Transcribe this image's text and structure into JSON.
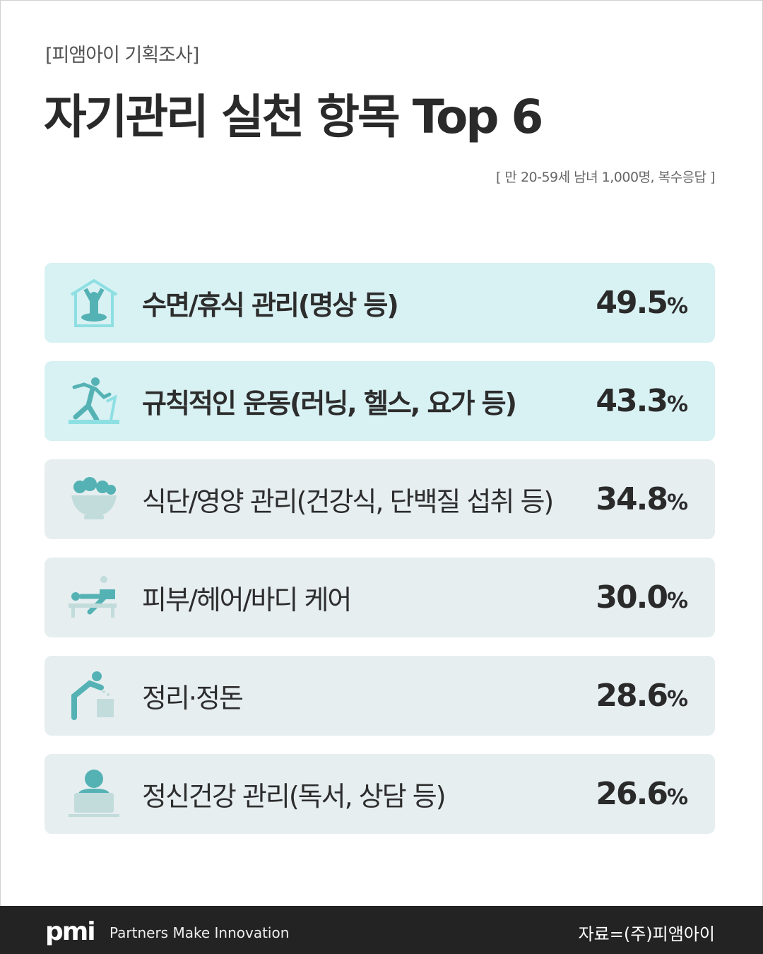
{
  "header": {
    "kicker": "[피앰아이 기획조사]",
    "title": "자기관리 실천 항목 Top 6",
    "note": "[ 만 20-59세 남녀 1,000명, 복수응답 ]"
  },
  "colors": {
    "highlight_bg": "#d8f1f3",
    "normal_bg": "#e6eef0",
    "icon_teal": "#55b2b4",
    "icon_light": "#8ddfe2",
    "footer_bg": "#232323"
  },
  "chart_data": {
    "type": "bar",
    "title": "자기관리 실천 항목 Top 6",
    "categories": [
      "수면/휴식 관리(명상 등)",
      "규칙적인 운동(러닝, 헬스, 요가 등)",
      "식단/영양 관리(건강식, 단백질 섭취 등)",
      "피부/헤어/바디 케어",
      "정리·정돈",
      "정신건강 관리(독서, 상담 등)"
    ],
    "values": [
      49.5,
      43.3,
      34.8,
      30.0,
      28.6,
      26.6
    ],
    "unit": "%",
    "icons": [
      "meditation-house-icon",
      "treadmill-runner-icon",
      "salad-bowl-icon",
      "spa-massage-icon",
      "tidying-person-icon",
      "reading-person-icon"
    ]
  },
  "rows": [
    {
      "label": "수면/휴식 관리(명상 등)",
      "value": "49.5",
      "unit": "%"
    },
    {
      "label": "규칙적인 운동(러닝, 헬스, 요가 등)",
      "value": "43.3",
      "unit": "%"
    },
    {
      "label": "식단/영양 관리(건강식, 단백질 섭취 등)",
      "value": "34.8",
      "unit": "%"
    },
    {
      "label": "피부/헤어/바디 케어",
      "value": "30.0",
      "unit": "%"
    },
    {
      "label": "정리·정돈",
      "value": "28.6",
      "unit": "%"
    },
    {
      "label": "정신건강 관리(독서, 상담 등)",
      "value": "26.6",
      "unit": "%"
    }
  ],
  "footer": {
    "logo": "pmi",
    "tagline": "Partners Make Innovation",
    "source": "자료=(주)피앰아이"
  }
}
